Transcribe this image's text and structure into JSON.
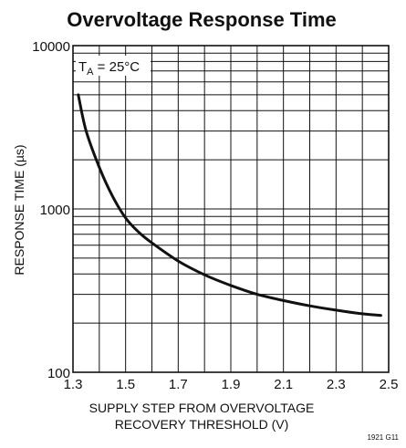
{
  "chart_data": {
    "type": "line",
    "title": "Overvoltage Response Time",
    "xlabel_line1": "SUPPLY STEP FROM OVERVOLTAGE",
    "xlabel_line2": "RECOVERY THRESHOLD (V)",
    "ylabel": "RESPONSE TIME (µs)",
    "xlim": [
      1.3,
      2.5
    ],
    "ylim": [
      100,
      10000
    ],
    "y_scale": "log",
    "x_ticks": [
      "1.3",
      "1.5",
      "1.7",
      "1.9",
      "2.1",
      "2.3",
      "2.5"
    ],
    "y_ticks": [
      "100",
      "1000",
      "10000"
    ],
    "grid": true,
    "annotation_main": "T",
    "annotation_sub": "A",
    "annotation_rest": " = 25°C",
    "figure_id": "1921 G11",
    "series": [
      {
        "x": [
          1.32,
          1.35,
          1.4,
          1.45,
          1.5,
          1.55,
          1.6,
          1.7,
          1.8,
          1.9,
          2.0,
          2.1,
          2.2,
          2.3,
          2.4,
          2.47
        ],
        "y": [
          5000,
          3000,
          1800,
          1200,
          880,
          720,
          620,
          480,
          395,
          340,
          300,
          275,
          255,
          240,
          228,
          223
        ]
      }
    ]
  }
}
